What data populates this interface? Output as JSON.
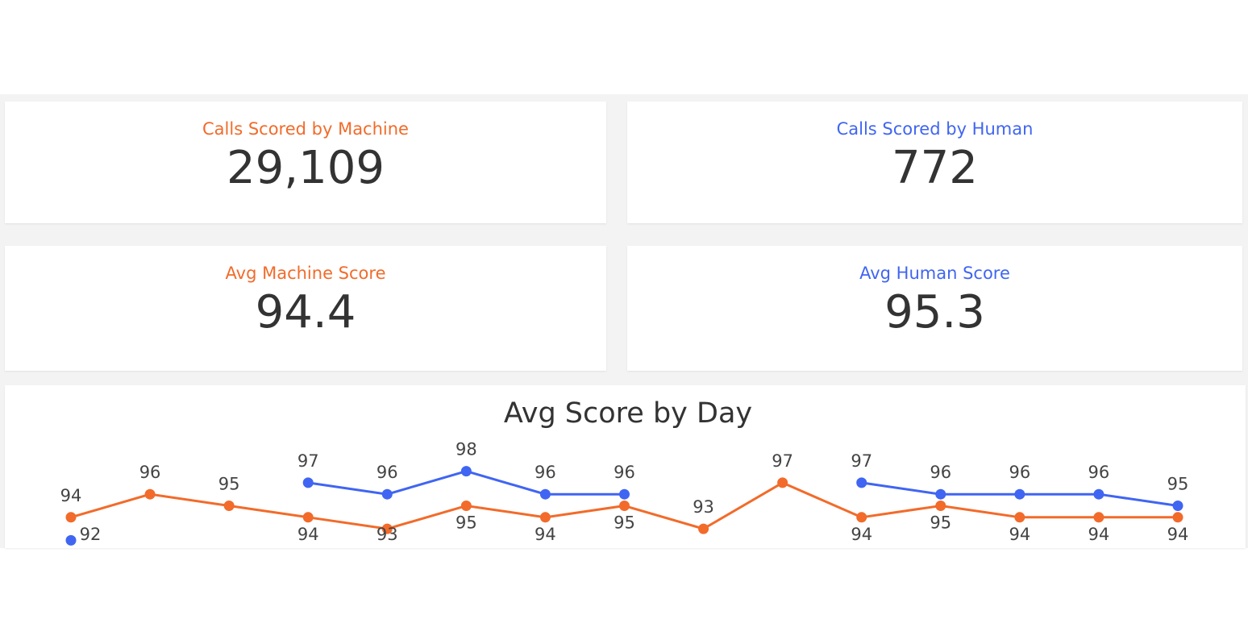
{
  "cards": [
    {
      "title": "Calls Scored by Machine",
      "value": "29,109",
      "color": "#f26b2a"
    },
    {
      "title": "Calls Scored by Human",
      "value": "772",
      "color": "#4065f2"
    },
    {
      "title": "Avg Machine Score",
      "value": "94.4",
      "color": "#f26b2a"
    },
    {
      "title": "Avg Human Score",
      "value": "95.3",
      "color": "#4065f2"
    }
  ],
  "chart_data": {
    "type": "line",
    "title": "Avg Score by Day",
    "categories": [
      null,
      null,
      null,
      null,
      null,
      null,
      null,
      null,
      null,
      null,
      null,
      null,
      null,
      null,
      null
    ],
    "series": [
      {
        "color": "#f26b2a",
        "values": [
          94,
          96,
          95,
          94,
          93,
          95,
          94,
          95,
          93,
          97,
          94,
          95,
          94,
          94,
          94
        ]
      },
      {
        "color": "#4065f2",
        "values": [
          92,
          null,
          null,
          97,
          96,
          98,
          96,
          96,
          null,
          null,
          97,
          96,
          96,
          96,
          95
        ]
      }
    ],
    "ylim": [
      90,
      100
    ]
  }
}
